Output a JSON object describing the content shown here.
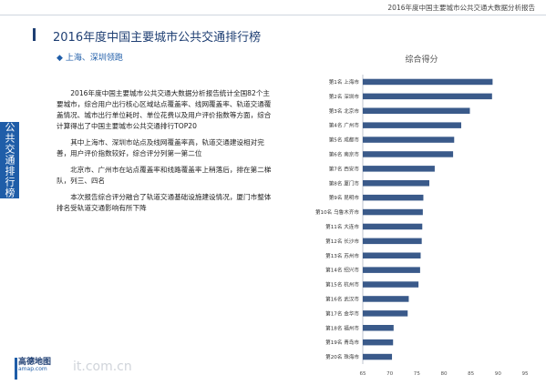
{
  "header": {
    "report_title": "2016年度中国主要城市公共交通大数据分析报告"
  },
  "page": {
    "title": "2016年度中国主要城市公共交通排行榜",
    "subtitle": "上海、深圳领跑",
    "side_tab": "公共交通排行榜"
  },
  "body": {
    "paragraphs": [
      "2016年度中国主要城市公共交通大数据分析报告统计全国82个主要城市，综合用户出行核心区域站点覆盖率、线网覆盖率、轨道交通覆盖情况、城市出行单位耗时、单位花费以及用户评价指数等方面，综合计算得出了中国主要城市公共交通排行TOP20",
      "其中上海市、深圳市站点及线网覆盖率高，轨道交通建设相对完善，用户评价指数较好，综合评分列第一第二位",
      "北京市、广州市在站点覆盖率和线路覆盖率上稍落后，排在第二梯队，列三、四名",
      "本次报告综合评分融合了轨道交通基础设施建设情况，厦门市整体排名受轨道交通影响有所下降"
    ]
  },
  "logo": {
    "name": "高德地图",
    "sub": "amap.com"
  },
  "watermark": "it.com.cn",
  "chart_data": {
    "type": "bar",
    "orientation": "horizontal",
    "title": "综合得分",
    "categories": [
      "第1名 上海市",
      "第2名 深圳市",
      "第3名 北京市",
      "第4名 广州市",
      "第5名 成都市",
      "第6名 南京市",
      "第7名 西安市",
      "第8名 厦门市",
      "第9名 昆明市",
      "第10名 乌鲁木齐市",
      "第11名 大连市",
      "第12名 长沙市",
      "第13名 苏州市",
      "第14名 绍兴市",
      "第15名 杭州市",
      "第16名 武汉市",
      "第17名 金华市",
      "第18名 福州市",
      "第19名 青岛市",
      "第20名 珠海市"
    ],
    "values": [
      89.0,
      88.9,
      84.8,
      83.2,
      81.9,
      81.7,
      78.3,
      77.3,
      76.2,
      76.1,
      76.0,
      75.9,
      75.7,
      75.6,
      75.3,
      73.5,
      73.3,
      70.7,
      70.6,
      70.4
    ],
    "xlim": [
      65,
      95
    ],
    "xticks": [
      65,
      70,
      75,
      80,
      85,
      90,
      95
    ],
    "grid": false,
    "bar_color": "#3a5a8a"
  }
}
